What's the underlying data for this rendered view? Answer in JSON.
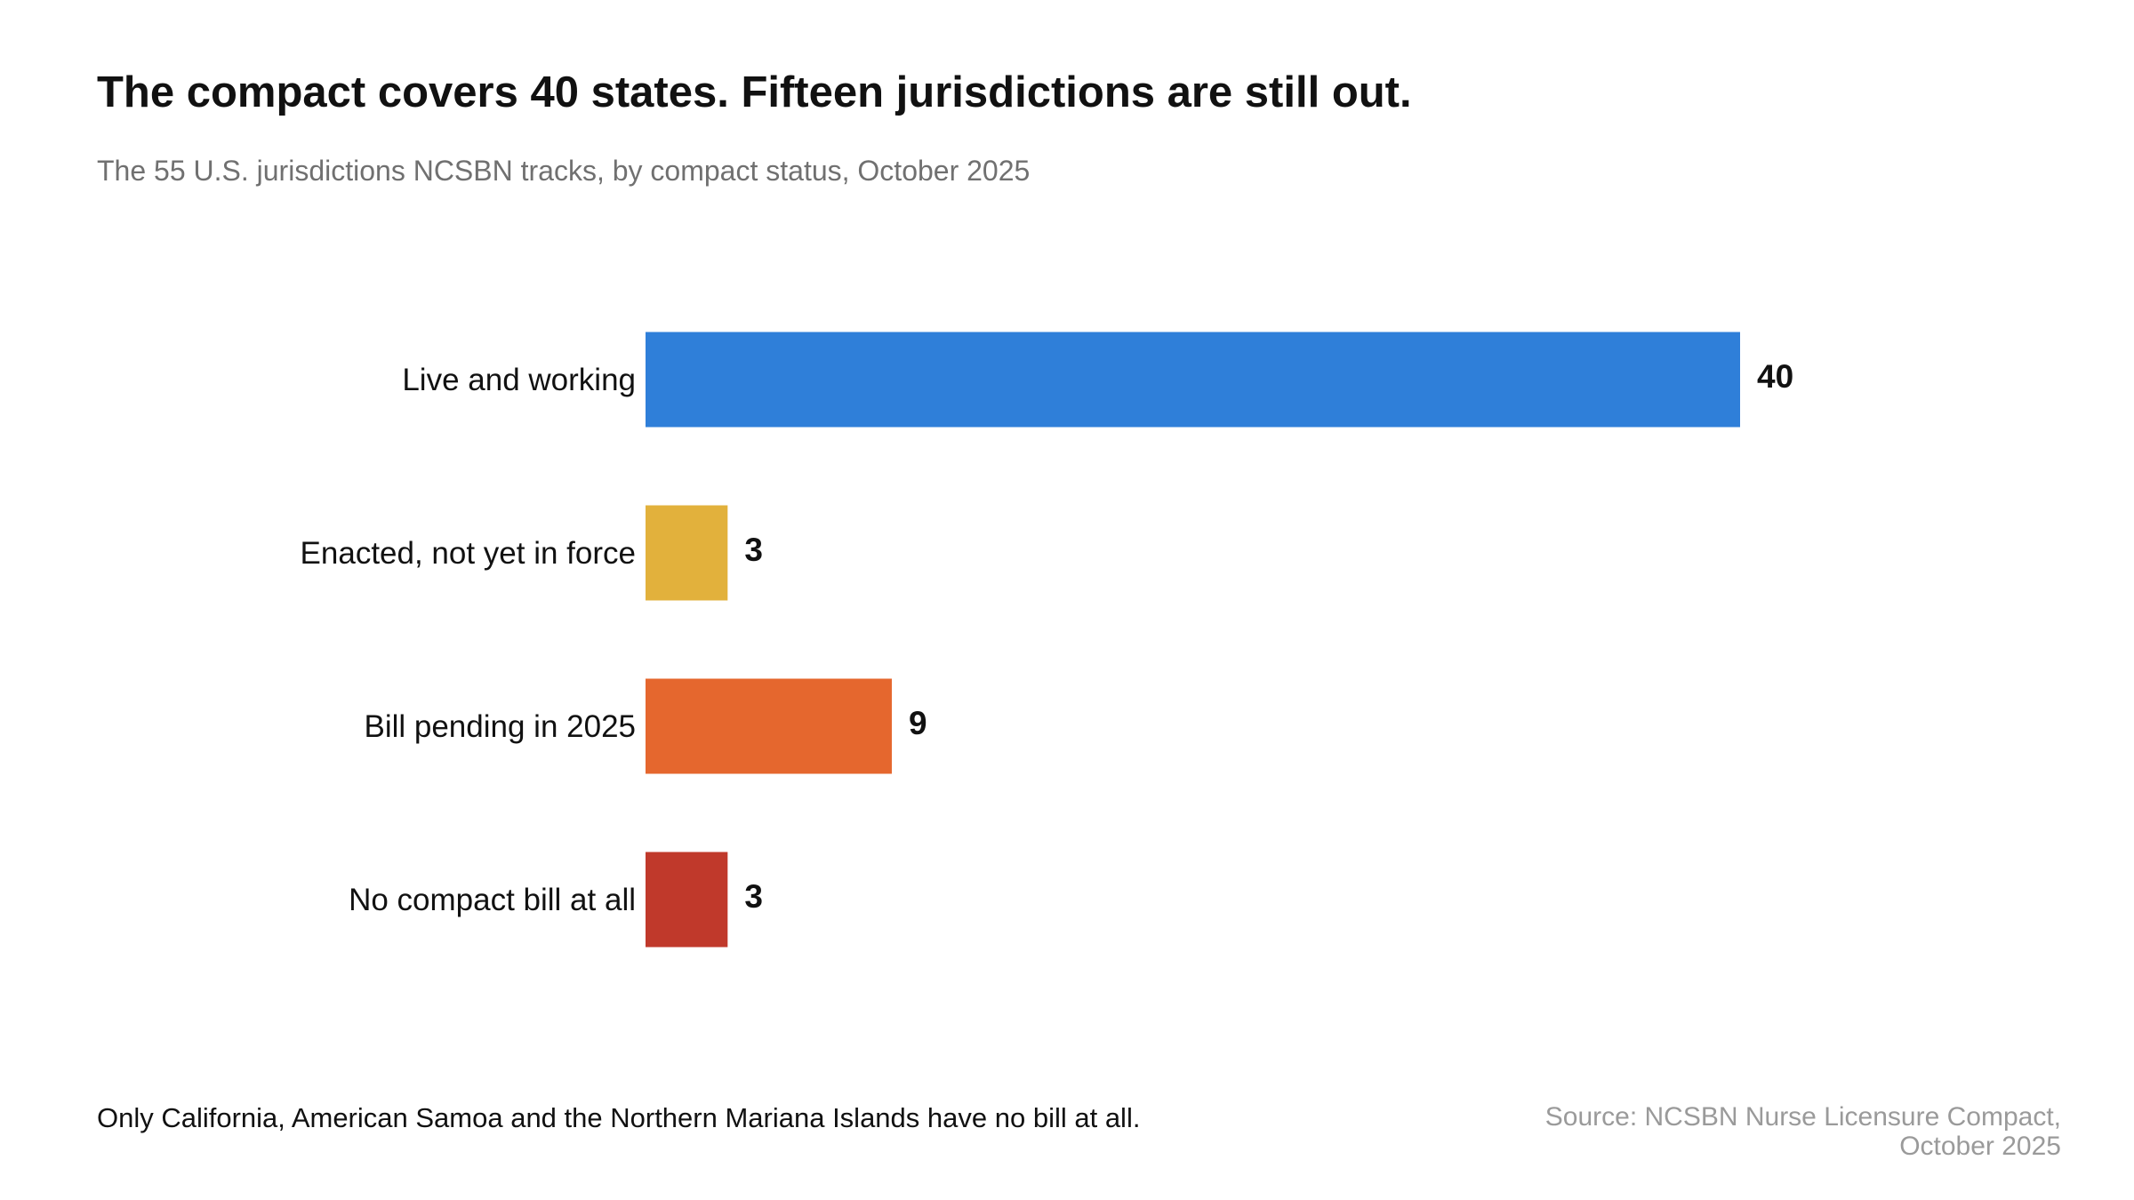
{
  "title": "The compact covers 40 states. Fifteen jurisdictions are still out.",
  "subtitle": "The 55 U.S. jurisdictions NCSBN tracks, by compact status, October 2025",
  "footnote": "Only California, American Samoa and the Northern Mariana Islands have no bill at all.",
  "source": {
    "line1": "Source: NCSBN Nurse Licensure Compact,",
    "line2": "October 2025"
  },
  "chart_data": {
    "type": "bar",
    "orientation": "horizontal",
    "categories": [
      "Live and working",
      "Enacted, not yet in force",
      "Bill pending in 2025",
      "No compact bill at all"
    ],
    "values": [
      40,
      3,
      9,
      3
    ],
    "colors": [
      "#2f7fd9",
      "#e2b13c",
      "#e5672e",
      "#c0392b"
    ],
    "data_labels": [
      "40",
      "3",
      "9",
      "3"
    ],
    "xlim": [
      0,
      40
    ],
    "grid": false,
    "legend": "none"
  }
}
